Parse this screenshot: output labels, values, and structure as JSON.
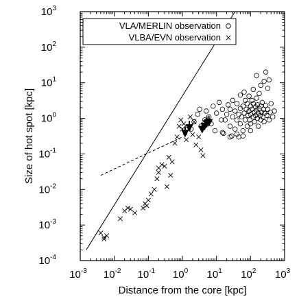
{
  "chart_data": {
    "type": "scatter",
    "xlabel": "Distance from the core [kpc]",
    "ylabel": "Size of hot spot [kpc]",
    "xscale": "log",
    "yscale": "log",
    "xlim": [
      0.001,
      1000
    ],
    "ylim": [
      0.0001,
      1000
    ],
    "x_ticks": [
      {
        "base": "10",
        "exp": "-3",
        "value": 0.001
      },
      {
        "base": "10",
        "exp": "-2",
        "value": 0.01
      },
      {
        "base": "10",
        "exp": "-1",
        "value": 0.1
      },
      {
        "base": "10",
        "exp": "0",
        "value": 1
      },
      {
        "base": "10",
        "exp": "1",
        "value": 10
      },
      {
        "base": "10",
        "exp": "2",
        "value": 100
      },
      {
        "base": "10",
        "exp": "3",
        "value": 1000
      }
    ],
    "y_ticks": [
      {
        "base": "10",
        "exp": "-4",
        "value": 0.0001
      },
      {
        "base": "10",
        "exp": "-3",
        "value": 0.001
      },
      {
        "base": "10",
        "exp": "-2",
        "value": 0.01
      },
      {
        "base": "10",
        "exp": "-1",
        "value": 0.1
      },
      {
        "base": "10",
        "exp": "0",
        "value": 1
      },
      {
        "base": "10",
        "exp": "1",
        "value": 10
      },
      {
        "base": "10",
        "exp": "2",
        "value": 100
      },
      {
        "base": "10",
        "exp": "3",
        "value": 1000
      }
    ],
    "legend": {
      "placement": "top-left",
      "entries": [
        {
          "label": "VLA/MERLIN observation",
          "marker": "circle"
        },
        {
          "label": "VLBA/EVN observation",
          "marker": "cross"
        }
      ]
    },
    "lines": [
      {
        "style": "solid",
        "from": [
          0.0015,
          0.0002
        ],
        "to": [
          35,
          1000
        ]
      },
      {
        "style": "dashed",
        "from": [
          0.004,
          0.025
        ],
        "to": [
          1,
          0.3
        ]
      }
    ],
    "series": [
      {
        "name": "VLA/MERLIN observation",
        "marker": "circle",
        "points": [
          [
            1.8,
            0.5
          ],
          [
            2.2,
            0.8
          ],
          [
            2.8,
            1.3
          ],
          [
            3.5,
            0.6
          ],
          [
            3.2,
            1.8
          ],
          [
            4.5,
            0.9
          ],
          [
            5,
            1.6
          ],
          [
            6,
            1.1
          ],
          [
            7,
            0.7
          ],
          [
            8,
            2.2
          ],
          [
            9,
            0.45
          ],
          [
            10,
            1.4
          ],
          [
            12,
            2.8
          ],
          [
            14,
            0.9
          ],
          [
            15,
            1.8
          ],
          [
            16,
            0.38
          ],
          [
            18,
            0.9
          ],
          [
            20,
            1.3
          ],
          [
            22,
            2.4
          ],
          [
            25,
            0.6
          ],
          [
            25,
            1.8
          ],
          [
            28,
            0.32
          ],
          [
            30,
            1.1
          ],
          [
            30,
            3.2
          ],
          [
            35,
            0.5
          ],
          [
            35,
            1.6
          ],
          [
            40,
            0.9
          ],
          [
            40,
            2.6
          ],
          [
            45,
            1.3
          ],
          [
            45,
            0.3
          ],
          [
            50,
            4.5
          ],
          [
            50,
            1.9
          ],
          [
            50,
            0.7
          ],
          [
            55,
            1.1
          ],
          [
            60,
            2.2
          ],
          [
            60,
            0.45
          ],
          [
            65,
            1.4
          ],
          [
            70,
            3.2
          ],
          [
            70,
            0.9
          ],
          [
            75,
            1.8
          ],
          [
            80,
            0.6
          ],
          [
            80,
            2.6
          ],
          [
            85,
            1.2
          ],
          [
            90,
            4.2
          ],
          [
            90,
            1.6
          ],
          [
            95,
            0.9
          ],
          [
            100,
            2.2
          ],
          [
            100,
            1.3
          ],
          [
            100,
            0.7
          ],
          [
            110,
            3.2
          ],
          [
            110,
            1.8
          ],
          [
            120,
            1.1
          ],
          [
            120,
            2.6
          ],
          [
            130,
            1.5
          ],
          [
            130,
            0.8
          ],
          [
            140,
            2.1
          ],
          [
            140,
            1.2
          ],
          [
            150,
            1.7
          ],
          [
            150,
            3.7
          ],
          [
            160,
            1.0
          ],
          [
            160,
            2.4
          ],
          [
            170,
            1.4
          ],
          [
            170,
            0.6
          ],
          [
            180,
            1.9
          ],
          [
            190,
            1.2
          ],
          [
            200,
            2.2
          ],
          [
            200,
            0.9
          ],
          [
            210,
            1.5
          ],
          [
            220,
            2.8
          ],
          [
            230,
            1.1
          ],
          [
            240,
            1.8
          ],
          [
            250,
            0.8
          ],
          [
            260,
            1.4
          ],
          [
            280,
            2.3
          ],
          [
            300,
            1.2
          ],
          [
            320,
            1.8
          ],
          [
            350,
            0.9
          ],
          [
            380,
            1.5
          ],
          [
            400,
            2.6
          ],
          [
            450,
            1.1
          ],
          [
            150,
            16
          ],
          [
            250,
            11
          ],
          [
            320,
            7
          ],
          [
            120,
            6.5
          ],
          [
            200,
            8.5
          ],
          [
            350,
            12
          ],
          [
            280,
            20
          ],
          [
            40,
            0.36
          ],
          [
            25,
            0.3
          ],
          [
            60,
            0.32
          ],
          [
            15,
            0.4
          ],
          [
            100,
            0.45
          ],
          [
            500,
            1.6
          ],
          [
            65,
            5.5
          ],
          [
            180,
            5
          ]
        ]
      },
      {
        "name": "VLBA/EVN observation",
        "marker": "cross",
        "points": [
          [
            0.004,
            0.0006
          ],
          [
            0.005,
            0.00045
          ],
          [
            0.006,
            0.0005
          ],
          [
            0.005,
            0.0004
          ],
          [
            0.015,
            0.0015
          ],
          [
            0.02,
            0.0025
          ],
          [
            0.025,
            0.003
          ],
          [
            0.03,
            0.0028
          ],
          [
            0.04,
            0.0022
          ],
          [
            0.07,
            0.003
          ],
          [
            0.08,
            0.004
          ],
          [
            0.09,
            0.0035
          ],
          [
            0.1,
            0.005
          ],
          [
            0.12,
            0.0075
          ],
          [
            0.15,
            0.01
          ],
          [
            0.18,
            0.02
          ],
          [
            0.2,
            0.03
          ],
          [
            0.25,
            0.05
          ],
          [
            0.3,
            0.045
          ],
          [
            0.4,
            0.08
          ],
          [
            0.5,
            0.06
          ],
          [
            0.35,
            0.012
          ],
          [
            0.45,
            0.025
          ],
          [
            0.6,
            0.2
          ],
          [
            0.7,
            0.3
          ],
          [
            0.8,
            0.6
          ],
          [
            0.9,
            0.9
          ],
          [
            1.1,
            0.7
          ],
          [
            1.2,
            0.4
          ],
          [
            1.3,
            0.25
          ],
          [
            1.5,
            0.5
          ],
          [
            1.7,
            1.1
          ],
          [
            2,
            0.35
          ],
          [
            2.5,
            0.18
          ],
          [
            3,
            0.3
          ],
          [
            3.5,
            0.13
          ],
          [
            4,
            0.09
          ],
          [
            0.2,
            0.04
          ],
          [
            1,
            0.5
          ],
          [
            2.2,
            0.8
          ]
        ]
      }
    ],
    "upper_limits": [
      {
        "x": 1.2,
        "y": 0.35
      },
      {
        "x": 1.6,
        "y": 0.5
      },
      {
        "x": 3.8,
        "y": 0.45
      },
      {
        "x": 4.5,
        "y": 0.55
      },
      {
        "x": 5.2,
        "y": 0.65
      },
      {
        "x": 6,
        "y": 0.7
      }
    ]
  }
}
